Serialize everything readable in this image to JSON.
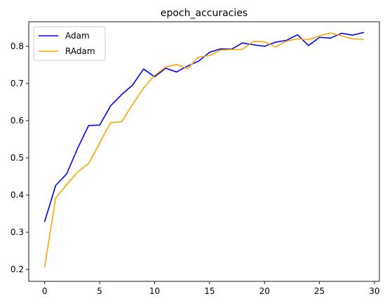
{
  "chart_data": {
    "type": "line",
    "title": "epoch_accuracies",
    "xlabel": "",
    "ylabel": "",
    "xlim": [
      -1.45,
      30.45
    ],
    "ylim": [
      0.168,
      0.866
    ],
    "xticks": [
      0,
      5,
      10,
      15,
      20,
      25,
      30
    ],
    "yticks": [
      0.2,
      0.3,
      0.4,
      0.5,
      0.6,
      0.7,
      0.8
    ],
    "grid": false,
    "legend_position": "top-left",
    "x": [
      0,
      1,
      2,
      3,
      4,
      5,
      6,
      7,
      8,
      9,
      10,
      11,
      12,
      13,
      14,
      15,
      16,
      17,
      18,
      19,
      20,
      21,
      22,
      23,
      24,
      25,
      26,
      27,
      28,
      29
    ],
    "series": [
      {
        "name": "Adam",
        "color": "#0000ff",
        "values": [
          0.329,
          0.426,
          0.457,
          0.526,
          0.587,
          0.588,
          0.64,
          0.67,
          0.696,
          0.739,
          0.718,
          0.741,
          0.731,
          0.747,
          0.76,
          0.784,
          0.793,
          0.792,
          0.809,
          0.804,
          0.8,
          0.811,
          0.816,
          0.831,
          0.802,
          0.824,
          0.822,
          0.835,
          0.83,
          0.837
        ]
      },
      {
        "name": "RAdam",
        "color": "#ffa500",
        "values": [
          0.207,
          0.392,
          0.428,
          0.462,
          0.485,
          0.54,
          0.595,
          0.597,
          0.644,
          0.688,
          0.722,
          0.744,
          0.751,
          0.74,
          0.771,
          0.775,
          0.79,
          0.791,
          0.792,
          0.813,
          0.812,
          0.798,
          0.814,
          0.82,
          0.818,
          0.828,
          0.836,
          0.828,
          0.82,
          0.818
        ]
      }
    ]
  }
}
